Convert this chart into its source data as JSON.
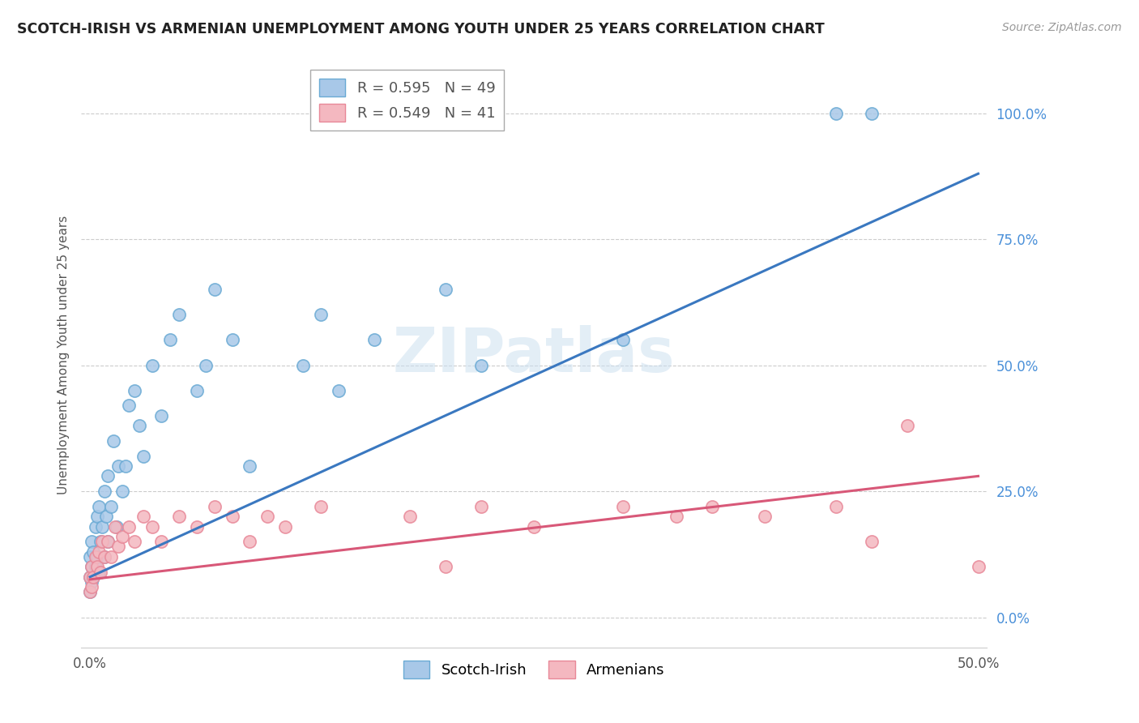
{
  "title": "SCOTCH-IRISH VS ARMENIAN UNEMPLOYMENT AMONG YOUTH UNDER 25 YEARS CORRELATION CHART",
  "source": "Source: ZipAtlas.com",
  "watermark": "ZIPatlas",
  "ylabel": "Unemployment Among Youth under 25 years",
  "xlim": [
    -0.005,
    0.505
  ],
  "ylim": [
    -0.06,
    1.1
  ],
  "yticks": [
    0.0,
    0.25,
    0.5,
    0.75,
    1.0
  ],
  "ytick_labels": [
    "0.0%",
    "25.0%",
    "50.0%",
    "75.0%",
    "100.0%"
  ],
  "xtick_positions": [
    0.0,
    0.5
  ],
  "xtick_labels": [
    "0.0%",
    "50.0%"
  ],
  "legend_r1": "R = 0.595   N = 49",
  "legend_r2": "R = 0.549   N = 41",
  "scotch_irish_color": "#a8c8e8",
  "armenian_color": "#f4b8c0",
  "scotch_irish_edge": "#6aaad4",
  "armenian_edge": "#e88898",
  "trendline_blue": "#3a78c0",
  "trendline_pink": "#d85878",
  "si_trend_x0": 0.0,
  "si_trend_y0": 0.08,
  "si_trend_x1": 0.5,
  "si_trend_y1": 0.88,
  "arm_trend_x0": 0.0,
  "arm_trend_y0": 0.075,
  "arm_trend_x1": 0.5,
  "arm_trend_y1": 0.28,
  "scotch_irish_x": [
    0.0,
    0.0,
    0.0,
    0.001,
    0.001,
    0.001,
    0.002,
    0.002,
    0.003,
    0.003,
    0.004,
    0.004,
    0.005,
    0.005,
    0.006,
    0.007,
    0.008,
    0.008,
    0.009,
    0.01,
    0.01,
    0.012,
    0.013,
    0.015,
    0.016,
    0.018,
    0.02,
    0.022,
    0.025,
    0.028,
    0.03,
    0.035,
    0.04,
    0.045,
    0.05,
    0.06,
    0.065,
    0.07,
    0.08,
    0.09,
    0.12,
    0.13,
    0.14,
    0.16,
    0.2,
    0.22,
    0.3,
    0.42,
    0.44
  ],
  "scotch_irish_y": [
    0.05,
    0.08,
    0.12,
    0.07,
    0.1,
    0.15,
    0.08,
    0.13,
    0.1,
    0.18,
    0.12,
    0.2,
    0.09,
    0.22,
    0.15,
    0.18,
    0.12,
    0.25,
    0.2,
    0.15,
    0.28,
    0.22,
    0.35,
    0.18,
    0.3,
    0.25,
    0.3,
    0.42,
    0.45,
    0.38,
    0.32,
    0.5,
    0.4,
    0.55,
    0.6,
    0.45,
    0.5,
    0.65,
    0.55,
    0.3,
    0.5,
    0.6,
    0.45,
    0.55,
    0.65,
    0.5,
    0.55,
    1.0,
    1.0
  ],
  "armenian_x": [
    0.0,
    0.0,
    0.001,
    0.001,
    0.002,
    0.003,
    0.004,
    0.005,
    0.006,
    0.007,
    0.008,
    0.01,
    0.012,
    0.014,
    0.016,
    0.018,
    0.022,
    0.025,
    0.03,
    0.035,
    0.04,
    0.05,
    0.06,
    0.07,
    0.08,
    0.09,
    0.1,
    0.11,
    0.13,
    0.18,
    0.2,
    0.22,
    0.25,
    0.3,
    0.33,
    0.35,
    0.38,
    0.42,
    0.44,
    0.46,
    0.5
  ],
  "armenian_y": [
    0.05,
    0.08,
    0.06,
    0.1,
    0.08,
    0.12,
    0.1,
    0.13,
    0.09,
    0.15,
    0.12,
    0.15,
    0.12,
    0.18,
    0.14,
    0.16,
    0.18,
    0.15,
    0.2,
    0.18,
    0.15,
    0.2,
    0.18,
    0.22,
    0.2,
    0.15,
    0.2,
    0.18,
    0.22,
    0.2,
    0.1,
    0.22,
    0.18,
    0.22,
    0.2,
    0.22,
    0.2,
    0.22,
    0.15,
    0.38,
    0.1
  ]
}
